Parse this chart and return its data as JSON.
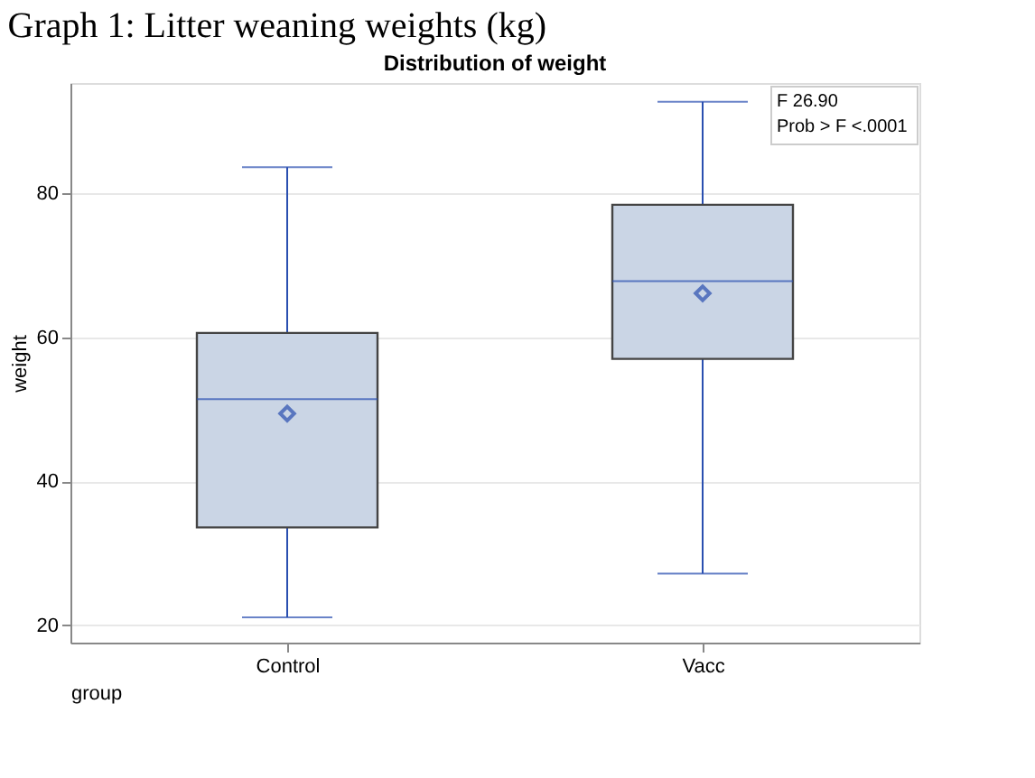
{
  "chart_data": {
    "type": "box",
    "title": "Graph 1: Litter weaning weights (kg)",
    "subtitle": "Distribution of weight",
    "xlabel": "group",
    "ylabel": "weight",
    "categories": [
      "Control",
      "Vacc"
    ],
    "color": "#cad5e5",
    "boxes": [
      {
        "low": 21.1,
        "q1": 33.6,
        "median": 51.4,
        "q3": 60.6,
        "high": 83.6,
        "mean": 49.4
      },
      {
        "low": 27.2,
        "q1": 57.0,
        "median": 67.8,
        "q3": 78.4,
        "high": 92.7,
        "mean": 66.1
      }
    ],
    "ylim": [
      17.6,
      95.3
    ],
    "yticks": [
      20,
      40,
      60,
      80
    ],
    "grid": "y",
    "annotations": [
      "F                26.90",
      "Prob > F  <.0001"
    ]
  }
}
